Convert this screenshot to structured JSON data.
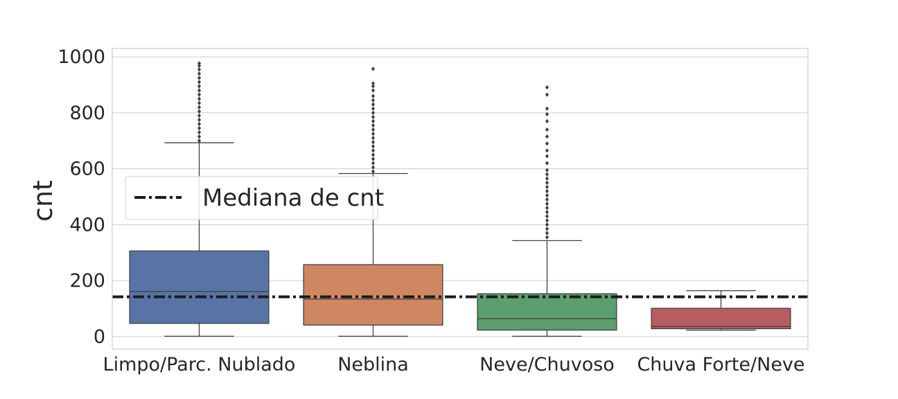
{
  "chart_data": {
    "type": "box",
    "title": "",
    "xlabel": "",
    "ylabel": "cnt",
    "ylim": [
      -45,
      1030
    ],
    "yticks": [
      0,
      200,
      400,
      600,
      800,
      1000
    ],
    "grid": true,
    "legend": {
      "placement": "upper-left",
      "entries": [
        "Mediana de cnt"
      ]
    },
    "reference_line": {
      "name": "Mediana de cnt",
      "value": 142,
      "style": "dash-dot",
      "color": "#1a1a1a"
    },
    "categories": [
      "Limpo/Parc. Nublado",
      "Neblina",
      "Neve/Chuvoso",
      "Chuva Forte/Neve"
    ],
    "colors": [
      "#5874a6",
      "#cf8761",
      "#5c9e6d",
      "#b85c62"
    ],
    "boxes": [
      {
        "whisker_low": 1,
        "q1": 47,
        "median": 161,
        "q3": 306,
        "whisker_high": 693,
        "outliers_range": [
          693,
          977
        ],
        "outliers": [
          700,
          715,
          730,
          745,
          760,
          775,
          790,
          805,
          820,
          835,
          850,
          865,
          880,
          895,
          910,
          925,
          940,
          955,
          968,
          977
        ]
      },
      {
        "whisker_low": 1,
        "q1": 41,
        "median": 134,
        "q3": 257,
        "whisker_high": 583,
        "outliers_range": [
          583,
          957
        ],
        "outliers": [
          590,
          605,
          620,
          635,
          650,
          665,
          680,
          695,
          710,
          725,
          740,
          755,
          770,
          785,
          800,
          815,
          830,
          845,
          860,
          880,
          895,
          905,
          957
        ]
      },
      {
        "whisker_low": 1,
        "q1": 23,
        "median": 64,
        "q3": 153,
        "whisker_high": 343,
        "outliers_range": [
          343,
          891
        ],
        "outliers": [
          355,
          370,
          385,
          400,
          415,
          430,
          445,
          460,
          475,
          490,
          505,
          520,
          535,
          550,
          565,
          580,
          595,
          620,
          645,
          665,
          690,
          715,
          740,
          770,
          795,
          815,
          865,
          891
        ]
      },
      {
        "whisker_low": 23,
        "q1": 28,
        "median": 36,
        "q3": 101,
        "whisker_high": 164,
        "outliers_range": [],
        "outliers": []
      }
    ]
  }
}
